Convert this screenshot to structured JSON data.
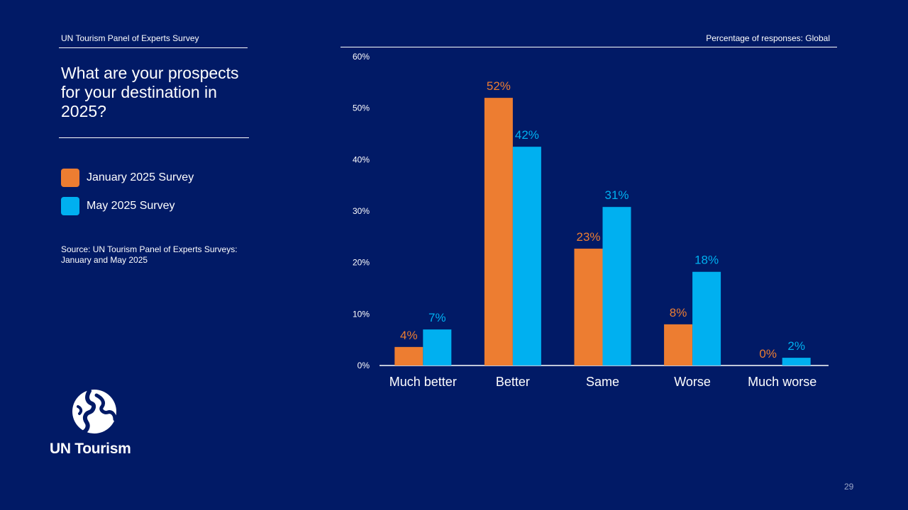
{
  "header": {
    "left_title": "UN Tourism Panel of Experts Survey",
    "right_title": "Percentage of responses: Global"
  },
  "question": "What are your prospects for your destination in 2025?",
  "legend": [
    {
      "label": "January 2025 Survey",
      "color": "#ed7d31"
    },
    {
      "label": "May 2025 Survey",
      "color": "#00b0f0"
    }
  ],
  "source": "Source: UN Tourism Panel of Experts Surveys: January and May 2025",
  "logo": {
    "text": "UN Tourism",
    "icon": "un-tourism-globe-icon"
  },
  "page_number": "29",
  "chart_data": {
    "type": "bar",
    "categories": [
      "Much better",
      "Better",
      "Same",
      "Worse",
      "Much worse"
    ],
    "series": [
      {
        "name": "January 2025 Survey",
        "color": "#ed7d31",
        "values": [
          3.6,
          52,
          22.7,
          8,
          0
        ],
        "labels": [
          "4%",
          "52%",
          "23%",
          "8%",
          "0%"
        ]
      },
      {
        "name": "May 2025 Survey",
        "color": "#00b0f0",
        "values": [
          7,
          42.5,
          30.8,
          18.2,
          1.5
        ],
        "labels": [
          "7%",
          "42%",
          "31%",
          "18%",
          "2%"
        ]
      }
    ],
    "yticks": [
      "0%",
      "10%",
      "20%",
      "30%",
      "40%",
      "50%",
      "60%"
    ],
    "ylim": [
      0,
      60
    ],
    "title": "",
    "xlabel": "",
    "ylabel": ""
  }
}
